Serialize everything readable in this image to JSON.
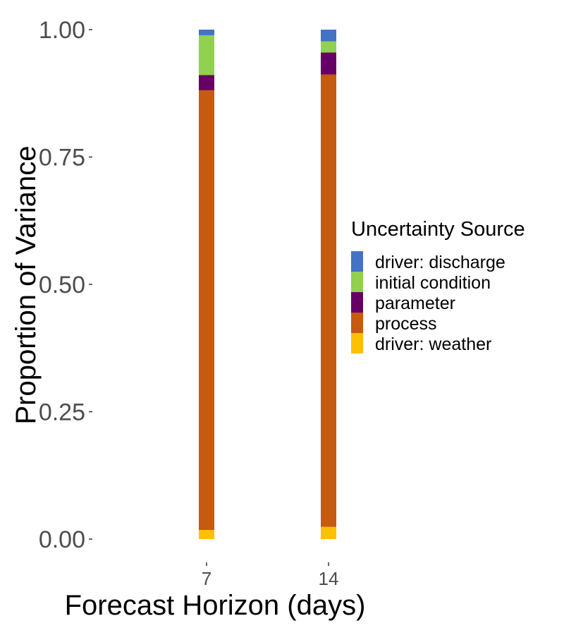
{
  "chart_data": {
    "type": "bar",
    "stacked": true,
    "title": "",
    "xlabel": "Forecast Horizon (days)",
    "ylabel": "Proportion of Variance",
    "ylim": [
      0,
      1
    ],
    "yticks": [
      "0.00",
      "0.25",
      "0.50",
      "0.75",
      "1.00"
    ],
    "categories": [
      "7",
      "14"
    ],
    "legend": {
      "title": "Uncertainty Source",
      "position": "right"
    },
    "series": [
      {
        "name": "driver: weather",
        "color": "#FFC000",
        "values": [
          0.018,
          0.024
        ]
      },
      {
        "name": "process",
        "color": "#C55A11",
        "values": [
          0.863,
          0.888
        ]
      },
      {
        "name": "parameter",
        "color": "#660066",
        "values": [
          0.03,
          0.043
        ]
      },
      {
        "name": "initial condition",
        "color": "#92D050",
        "values": [
          0.078,
          0.022
        ]
      },
      {
        "name": "driver: discharge",
        "color": "#4472C4",
        "values": [
          0.011,
          0.023
        ]
      }
    ],
    "legend_order": [
      "driver: discharge",
      "initial condition",
      "parameter",
      "process",
      "driver: weather"
    ],
    "grid": false
  }
}
